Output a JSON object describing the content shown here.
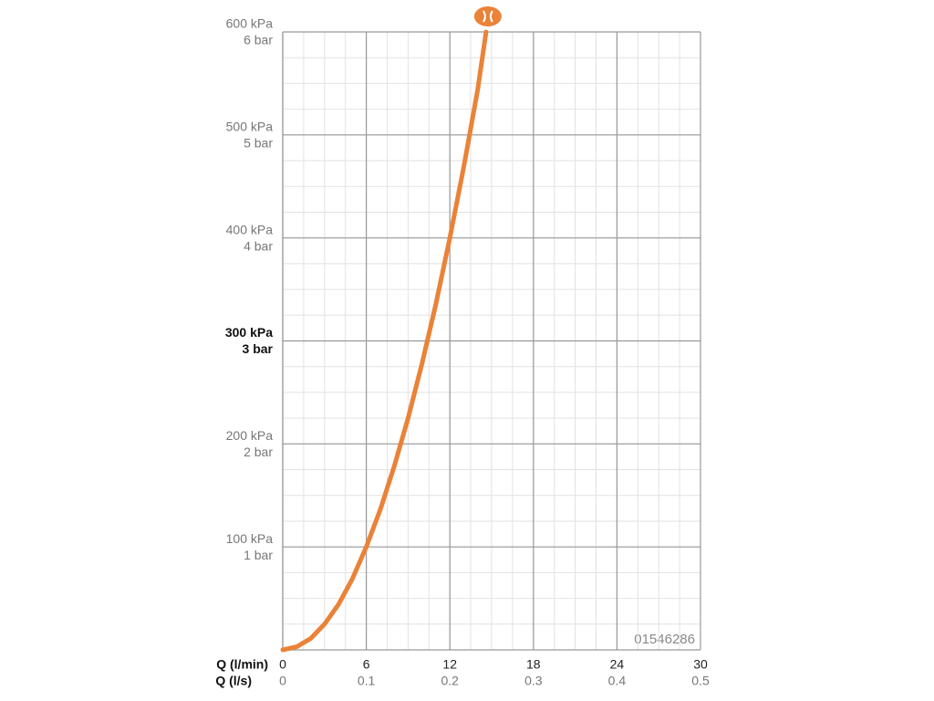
{
  "chart_data": {
    "type": "line",
    "x": [
      0,
      1,
      2,
      3,
      4,
      5,
      6,
      7,
      8,
      9,
      10,
      11,
      12,
      13,
      14,
      14.6
    ],
    "series": [
      {
        "color": "#ea8238",
        "values": [
          0,
          3,
          11,
          25,
          44,
          69,
          100,
          136,
          178,
          225,
          278,
          336,
          400,
          469,
          544,
          600
        ]
      }
    ],
    "xlim": [
      0,
      30
    ],
    "xticks": [
      0,
      6,
      12,
      18,
      24,
      30
    ],
    "xlabel": "Q (l/min)",
    "x2lim": [
      0,
      0.5
    ],
    "x2ticks": [
      0,
      0.1,
      0.2,
      0.3,
      0.4,
      0.5
    ],
    "x2label": "Q (l/s)",
    "ylim": [
      0,
      600
    ],
    "yticks": [
      {
        "value": 100,
        "label": "100 kPa"
      },
      {
        "value": 200,
        "label": "200 kPa"
      },
      {
        "value": 300,
        "label": "300 kPa"
      },
      {
        "value": 400,
        "label": "400 kPa"
      },
      {
        "value": 500,
        "label": "500 kPa"
      },
      {
        "value": 600,
        "label": "600 kPa"
      }
    ],
    "ytick_sublabels": [
      "1 bar",
      "2 bar",
      "3 bar",
      "4 bar",
      "5 bar",
      "6 bar"
    ],
    "highlight_ytick": 300,
    "minor_xstep": 1.5,
    "minor_ystep": 25,
    "grid": true,
    "code": "01546286"
  }
}
